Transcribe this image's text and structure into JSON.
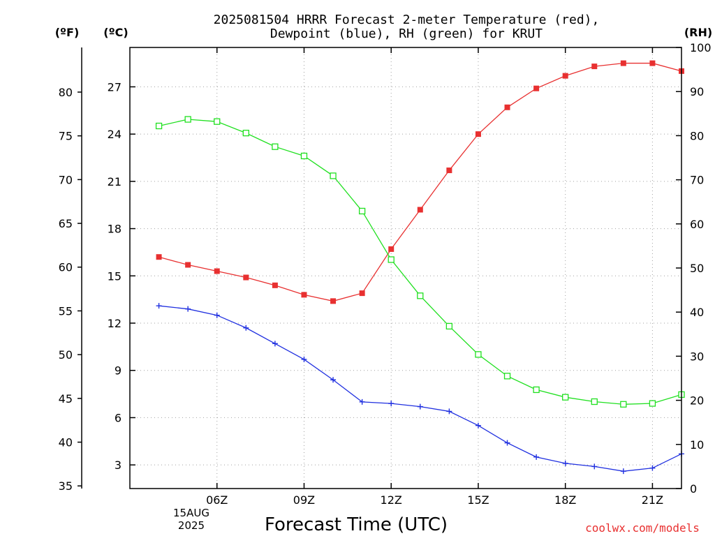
{
  "chart_data": {
    "type": "line",
    "title_line1": "2025081504 HRRR Forecast 2-meter Temperature (red),",
    "title_line2": "Dewpoint (blue), RH (green) for KRUT",
    "xlabel": "Forecast Time (UTC)",
    "date_label_1": "15AUG",
    "date_label_2": "2025",
    "credit": "coolwx.com/models",
    "axis_f_label": "(ºF)",
    "axis_c_label": "(ºC)",
    "axis_rh_label": "(RH)",
    "x_hours": [
      4,
      5,
      6,
      7,
      8,
      9,
      10,
      11,
      12,
      13,
      14,
      15,
      16,
      17,
      18,
      19,
      20,
      21,
      22
    ],
    "x_tick_labels": [
      {
        "hour": 6,
        "label": "06Z"
      },
      {
        "hour": 9,
        "label": "09Z"
      },
      {
        "hour": 12,
        "label": "12Z"
      },
      {
        "hour": 15,
        "label": "15Z"
      },
      {
        "hour": 18,
        "label": "18Z"
      },
      {
        "hour": 21,
        "label": "21Z"
      }
    ],
    "xlim": [
      3,
      22
    ],
    "y_c_lim": [
      1.5,
      29.5
    ],
    "y_f_ticks": [
      "35",
      "40",
      "45",
      "50",
      "55",
      "60",
      "65",
      "70",
      "75",
      "80"
    ],
    "y_c_ticks": [
      "3",
      "6",
      "9",
      "12",
      "15",
      "18",
      "21",
      "24",
      "27"
    ],
    "y_rh_ticks": [
      "0",
      "10",
      "20",
      "30",
      "40",
      "50",
      "60",
      "70",
      "80",
      "90",
      "100"
    ],
    "series": [
      {
        "name": "Temperature",
        "color": "#e83030",
        "marker": "filled-square",
        "unit": "C",
        "values": [
          16.2,
          15.7,
          15.3,
          14.9,
          14.4,
          13.8,
          13.4,
          13.9,
          16.7,
          19.2,
          21.7,
          24.0,
          25.7,
          26.9,
          27.7,
          28.3,
          28.5,
          28.5,
          28.0
        ]
      },
      {
        "name": "Dewpoint",
        "color": "#2030e0",
        "marker": "plus",
        "unit": "C",
        "values": [
          13.1,
          12.9,
          12.5,
          11.7,
          10.7,
          9.7,
          8.4,
          7.0,
          6.9,
          6.7,
          6.4,
          5.5,
          4.4,
          3.5,
          3.1,
          2.9,
          2.6,
          2.8,
          3.7
        ]
      },
      {
        "name": "RH",
        "color": "#20e020",
        "marker": "open-square",
        "unit": "%",
        "values": [
          82.2,
          83.7,
          83.2,
          80.6,
          77.5,
          75.4,
          70.9,
          62.9,
          51.9,
          43.7,
          36.8,
          30.4,
          25.5,
          22.4,
          20.7,
          19.7,
          19.1,
          19.3,
          21.3
        ]
      }
    ]
  }
}
